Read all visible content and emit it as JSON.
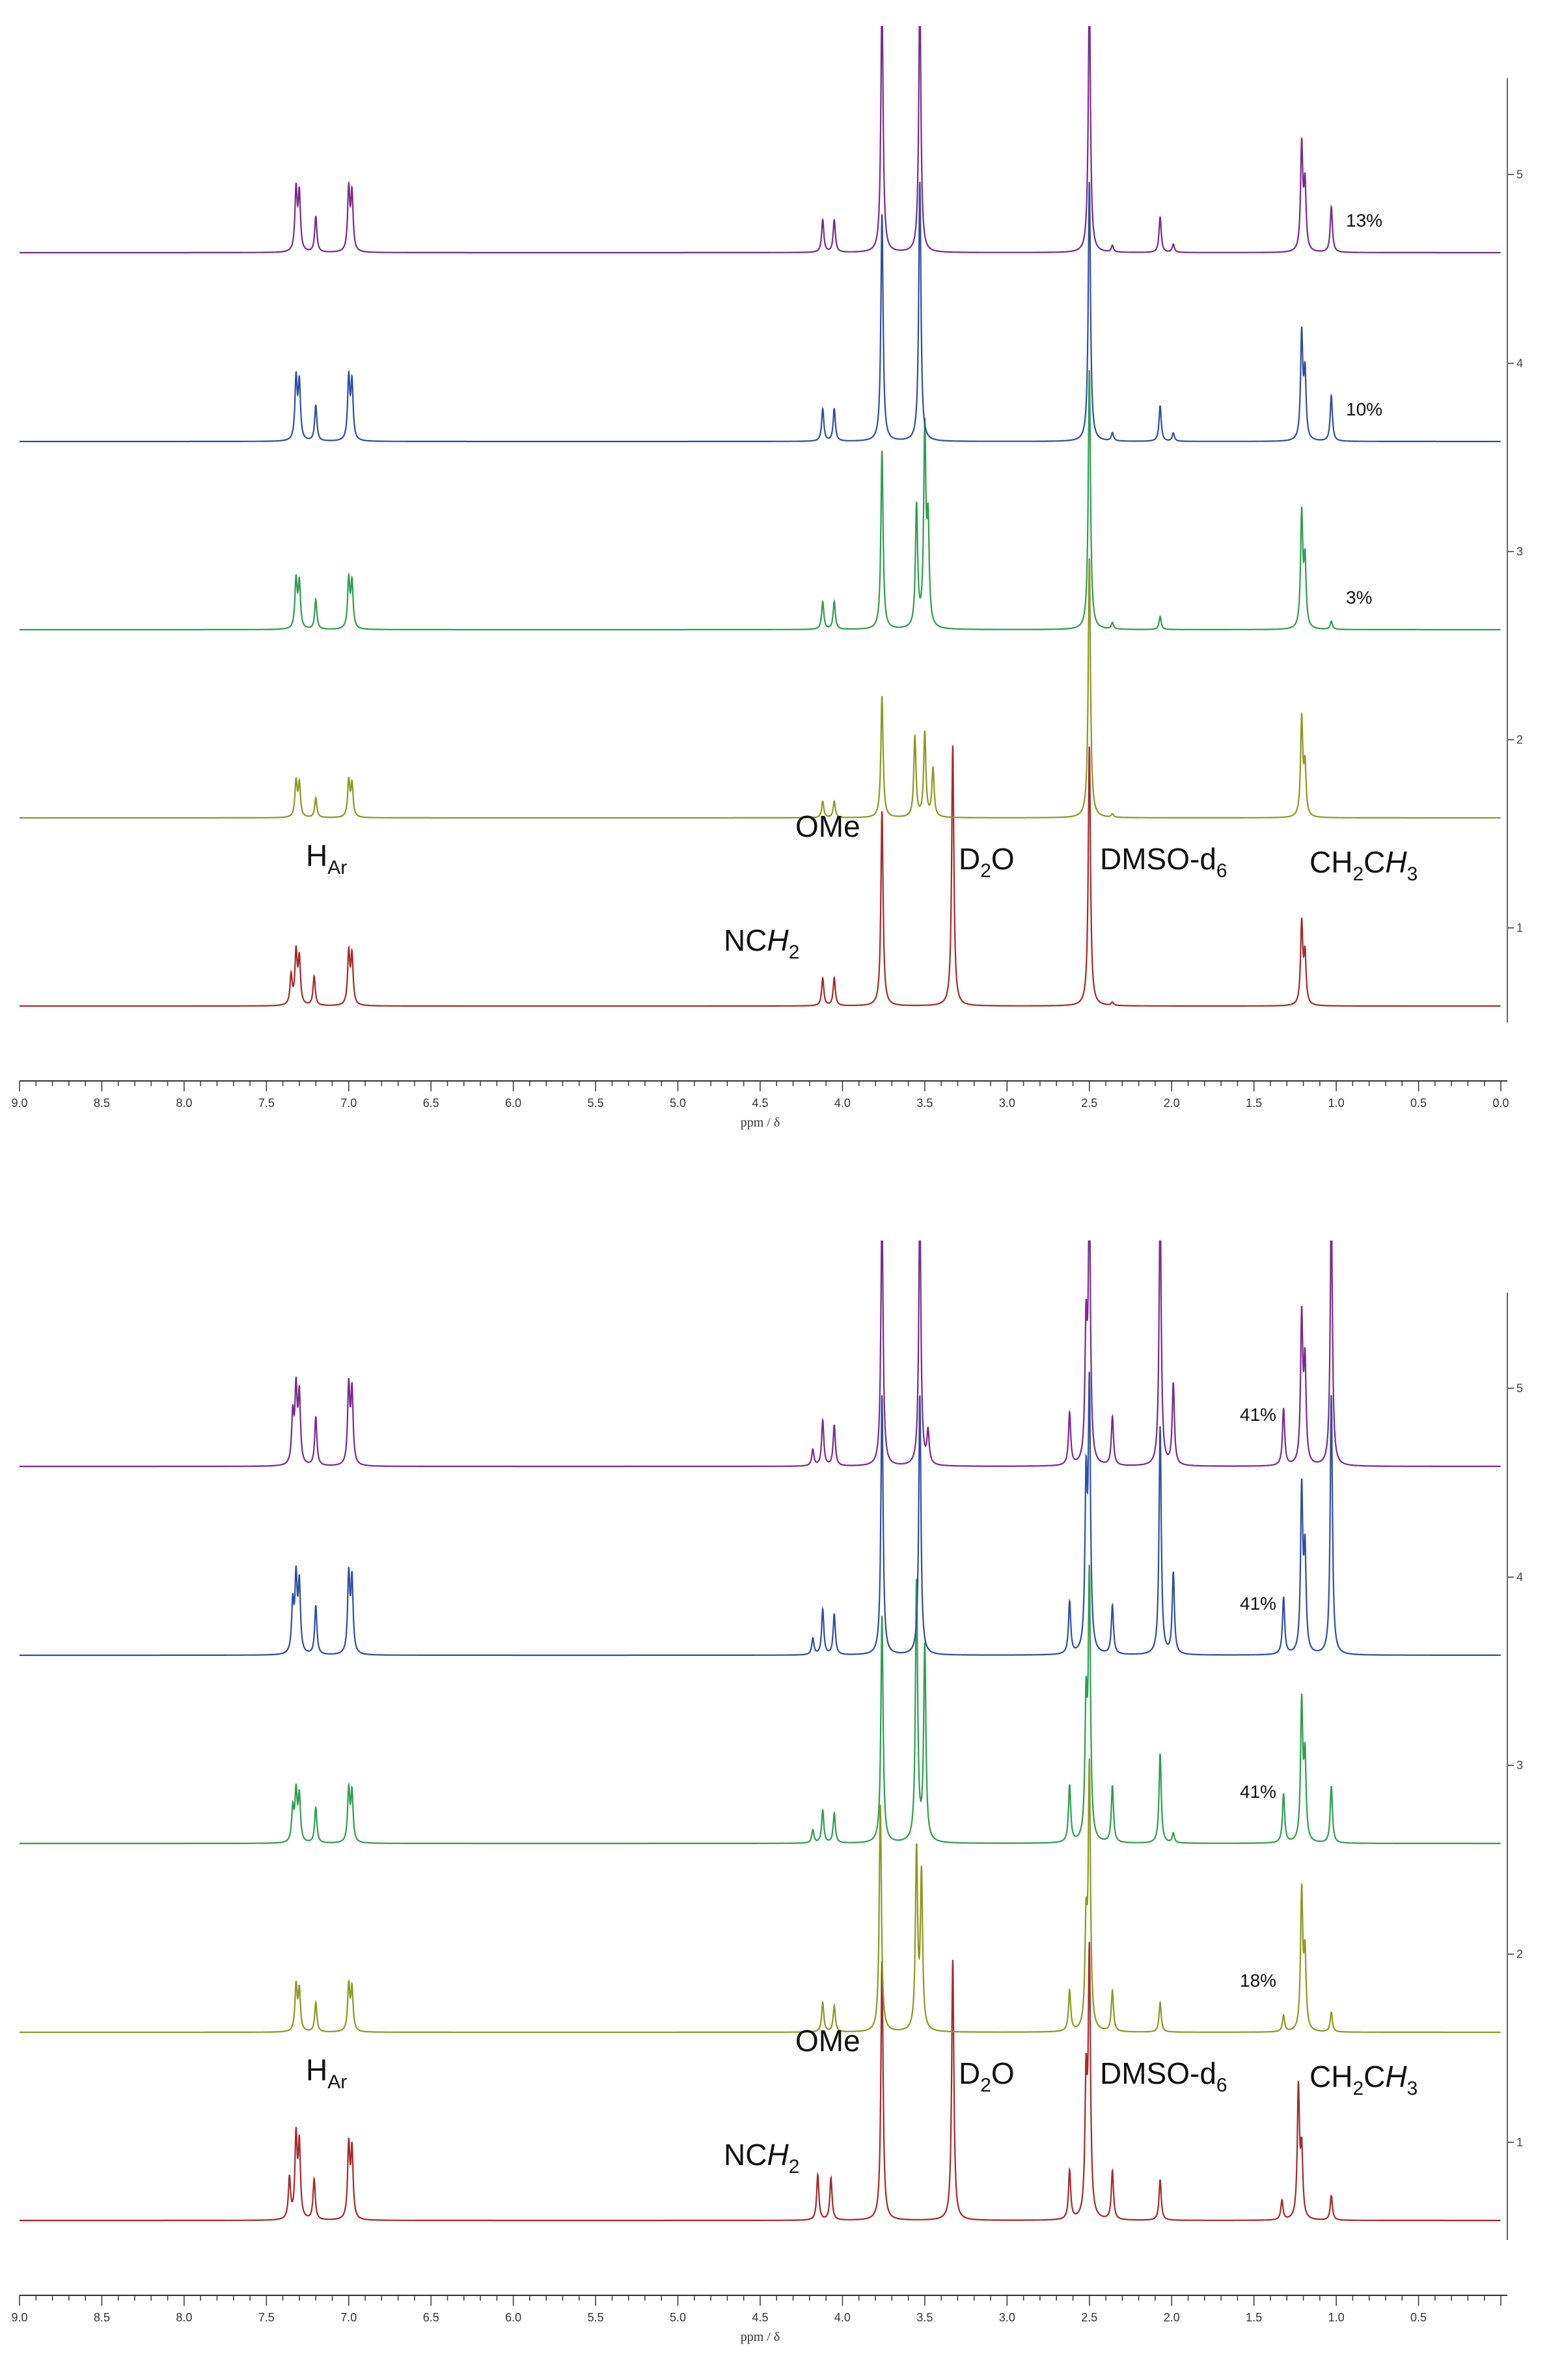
{
  "chart_data": [
    {
      "type": "line",
      "xlabel": "ppm / δ",
      "xlim": [
        9.0,
        0.0
      ],
      "x_ticks": [
        "9.0",
        "8.5",
        "8.0",
        "7.5",
        "7.0",
        "6.5",
        "6.0",
        "5.5",
        "5.0",
        "4.5",
        "4.0",
        "3.5",
        "3.0",
        "2.5",
        "2.0",
        "1.5",
        "1.0",
        "0.5",
        "0.0"
      ],
      "right_axis_labels": [
        "1",
        "2",
        "3",
        "4",
        "5"
      ],
      "annotations": {
        "har_main": "H",
        "har_sub": "Ar",
        "ome": "OMe",
        "nch_main": "NC",
        "nch_italic": "H",
        "nch_sub": "2",
        "d2o_a": "D",
        "d2o_sub": "2",
        "d2o_b": "O",
        "dmso_main": "DMSO-d",
        "dmso_sub": "6",
        "ethyl_a": "CH",
        "ethyl_sub1": "2",
        "ethyl_b": "C",
        "ethyl_italic": "H",
        "ethyl_sub2": "3"
      },
      "series": [
        {
          "color": "#a52a2a",
          "percent": "",
          "peaks": [
            [
              7.35,
              0.18
            ],
            [
              7.32,
              0.32
            ],
            [
              7.3,
              0.28
            ],
            [
              7.21,
              0.18
            ],
            [
              7.0,
              0.32
            ],
            [
              6.98,
              0.3
            ],
            [
              4.12,
              0.17
            ],
            [
              4.05,
              0.17
            ],
            [
              3.76,
              1.2
            ],
            [
              3.33,
              1.6
            ],
            [
              2.5,
              1.6
            ],
            [
              2.36,
              0.02
            ],
            [
              1.21,
              0.5
            ],
            [
              1.19,
              0.3
            ]
          ]
        },
        {
          "color": "#8a9a1f",
          "percent": "",
          "peaks": [
            [
              7.32,
              0.22
            ],
            [
              7.3,
              0.2
            ],
            [
              7.2,
              0.12
            ],
            [
              7.0,
              0.22
            ],
            [
              6.98,
              0.2
            ],
            [
              4.12,
              0.1
            ],
            [
              4.05,
              0.1
            ],
            [
              3.76,
              0.75
            ],
            [
              3.56,
              0.5
            ],
            [
              3.5,
              0.52
            ],
            [
              3.45,
              0.3
            ],
            [
              2.5,
              1.6
            ],
            [
              2.36,
              0.02
            ],
            [
              1.21,
              0.6
            ],
            [
              1.19,
              0.3
            ]
          ]
        },
        {
          "color": "#2e9e4f",
          "percent": "3%",
          "peaks": [
            [
              7.32,
              0.3
            ],
            [
              7.3,
              0.28
            ],
            [
              7.2,
              0.18
            ],
            [
              7.0,
              0.3
            ],
            [
              6.98,
              0.28
            ],
            [
              4.12,
              0.17
            ],
            [
              4.05,
              0.17
            ],
            [
              3.76,
              1.1
            ],
            [
              3.55,
              0.75
            ],
            [
              3.5,
              1.2
            ],
            [
              3.48,
              0.6
            ],
            [
              2.5,
              1.6
            ],
            [
              2.36,
              0.04
            ],
            [
              2.07,
              0.08
            ],
            [
              1.21,
              0.7
            ],
            [
              1.19,
              0.4
            ],
            [
              1.03,
              0.05
            ]
          ]
        },
        {
          "color": "#2e4fa2",
          "percent": "10%",
          "peaks": [
            [
              7.32,
              0.38
            ],
            [
              7.3,
              0.35
            ],
            [
              7.2,
              0.22
            ],
            [
              7.0,
              0.38
            ],
            [
              6.98,
              0.35
            ],
            [
              4.12,
              0.2
            ],
            [
              4.05,
              0.2
            ],
            [
              3.76,
              1.4
            ],
            [
              3.53,
              1.6
            ],
            [
              2.5,
              1.6
            ],
            [
              2.36,
              0.05
            ],
            [
              2.07,
              0.22
            ],
            [
              1.99,
              0.05
            ],
            [
              1.21,
              0.65
            ],
            [
              1.19,
              0.4
            ],
            [
              1.03,
              0.28
            ]
          ]
        },
        {
          "color": "#7b2a8e",
          "percent": "13%",
          "peaks": [
            [
              7.32,
              0.38
            ],
            [
              7.3,
              0.35
            ],
            [
              7.2,
              0.22
            ],
            [
              7.0,
              0.38
            ],
            [
              6.98,
              0.35
            ],
            [
              4.12,
              0.2
            ],
            [
              4.05,
              0.2
            ],
            [
              3.76,
              1.6
            ],
            [
              3.53,
              1.6
            ],
            [
              2.5,
              1.6
            ],
            [
              2.36,
              0.04
            ],
            [
              2.07,
              0.22
            ],
            [
              1.99,
              0.05
            ],
            [
              1.21,
              0.65
            ],
            [
              1.19,
              0.4
            ],
            [
              1.03,
              0.28
            ]
          ]
        }
      ]
    },
    {
      "type": "line",
      "xlabel": "ppm / δ",
      "xlim": [
        9.0,
        0.0
      ],
      "x_ticks": [
        "9.0",
        "8.5",
        "8.0",
        "7.5",
        "7.0",
        "6.5",
        "6.0",
        "5.5",
        "5.0",
        "4.5",
        "4.0",
        "3.5",
        "3.0",
        "2.5",
        "2.0",
        "1.5",
        "1.0",
        "0.5"
      ],
      "right_axis_labels": [
        "1",
        "2",
        "3",
        "4",
        "5"
      ],
      "annotations": {
        "har_main": "H",
        "har_sub": "Ar",
        "ome": "OMe",
        "nch_main": "NC",
        "nch_italic": "H",
        "nch_sub": "2",
        "d2o_a": "D",
        "d2o_sub": "2",
        "d2o_b": "O",
        "dmso_main": "DMSO-d",
        "dmso_sub": "6",
        "ethyl_a": "CH",
        "ethyl_sub1": "2",
        "ethyl_b": "C",
        "ethyl_italic": "H",
        "ethyl_sub2": "3"
      },
      "series": [
        {
          "color": "#a52a2a",
          "percent": "",
          "peaks": [
            [
              7.36,
              0.25
            ],
            [
              7.32,
              0.5
            ],
            [
              7.3,
              0.45
            ],
            [
              7.21,
              0.25
            ],
            [
              7.0,
              0.45
            ],
            [
              6.98,
              0.42
            ],
            [
              4.15,
              0.28
            ],
            [
              4.07,
              0.26
            ],
            [
              3.76,
              1.6
            ],
            [
              3.33,
              1.6
            ],
            [
              2.62,
              0.3
            ],
            [
              2.52,
              0.8
            ],
            [
              2.5,
              1.6
            ],
            [
              2.36,
              0.3
            ],
            [
              2.07,
              0.25
            ],
            [
              1.33,
              0.12
            ],
            [
              1.23,
              0.8
            ],
            [
              1.21,
              0.4
            ],
            [
              1.03,
              0.15
            ]
          ]
        },
        {
          "color": "#8a9a1f",
          "percent": "18%",
          "peaks": [
            [
              7.32,
              0.28
            ],
            [
              7.3,
              0.25
            ],
            [
              7.2,
              0.18
            ],
            [
              7.0,
              0.28
            ],
            [
              6.98,
              0.26
            ],
            [
              4.12,
              0.18
            ],
            [
              4.05,
              0.16
            ],
            [
              3.77,
              1.4
            ],
            [
              3.55,
              1.1
            ],
            [
              3.52,
              0.95
            ],
            [
              2.62,
              0.25
            ],
            [
              2.52,
              0.6
            ],
            [
              2.5,
              1.6
            ],
            [
              2.36,
              0.25
            ],
            [
              2.07,
              0.18
            ],
            [
              1.32,
              0.1
            ],
            [
              1.21,
              0.85
            ],
            [
              1.19,
              0.45
            ],
            [
              1.03,
              0.12
            ]
          ]
        },
        {
          "color": "#2e9e4f",
          "percent": "41%",
          "peaks": [
            [
              7.34,
              0.2
            ],
            [
              7.32,
              0.3
            ],
            [
              7.3,
              0.28
            ],
            [
              7.2,
              0.22
            ],
            [
              7.0,
              0.32
            ],
            [
              6.98,
              0.3
            ],
            [
              4.18,
              0.08
            ],
            [
              4.12,
              0.2
            ],
            [
              4.05,
              0.18
            ],
            [
              3.76,
              1.4
            ],
            [
              3.55,
              1.6
            ],
            [
              3.5,
              1.2
            ],
            [
              2.62,
              0.35
            ],
            [
              2.52,
              0.8
            ],
            [
              2.5,
              1.6
            ],
            [
              2.36,
              0.35
            ],
            [
              2.07,
              0.55
            ],
            [
              1.99,
              0.06
            ],
            [
              1.32,
              0.3
            ],
            [
              1.21,
              0.85
            ],
            [
              1.19,
              0.5
            ],
            [
              1.03,
              0.35
            ]
          ]
        },
        {
          "color": "#2e4fa2",
          "percent": "41%",
          "peaks": [
            [
              7.34,
              0.3
            ],
            [
              7.32,
              0.45
            ],
            [
              7.3,
              0.42
            ],
            [
              7.2,
              0.3
            ],
            [
              7.0,
              0.48
            ],
            [
              6.98,
              0.45
            ],
            [
              4.18,
              0.1
            ],
            [
              4.12,
              0.28
            ],
            [
              4.05,
              0.25
            ],
            [
              3.76,
              1.6
            ],
            [
              3.53,
              1.6
            ],
            [
              2.62,
              0.32
            ],
            [
              2.52,
              1.0
            ],
            [
              2.5,
              1.6
            ],
            [
              2.36,
              0.3
            ],
            [
              2.07,
              1.4
            ],
            [
              1.99,
              0.5
            ],
            [
              1.32,
              0.35
            ],
            [
              1.21,
              1.0
            ],
            [
              1.19,
              0.6
            ],
            [
              1.03,
              1.6
            ]
          ]
        },
        {
          "color": "#7b2a8e",
          "percent": "41%",
          "peaks": [
            [
              7.34,
              0.3
            ],
            [
              7.32,
              0.45
            ],
            [
              7.3,
              0.42
            ],
            [
              7.2,
              0.3
            ],
            [
              7.0,
              0.48
            ],
            [
              6.98,
              0.45
            ],
            [
              4.18,
              0.1
            ],
            [
              4.12,
              0.28
            ],
            [
              4.05,
              0.25
            ],
            [
              3.76,
              1.6
            ],
            [
              3.53,
              1.6
            ],
            [
              3.48,
              0.2
            ],
            [
              2.62,
              0.32
            ],
            [
              2.52,
              0.8
            ],
            [
              2.5,
              1.6
            ],
            [
              2.36,
              0.3
            ],
            [
              2.07,
              1.6
            ],
            [
              1.99,
              0.5
            ],
            [
              1.32,
              0.35
            ],
            [
              1.21,
              0.9
            ],
            [
              1.19,
              0.6
            ],
            [
              1.03,
              1.6
            ]
          ]
        }
      ]
    }
  ]
}
